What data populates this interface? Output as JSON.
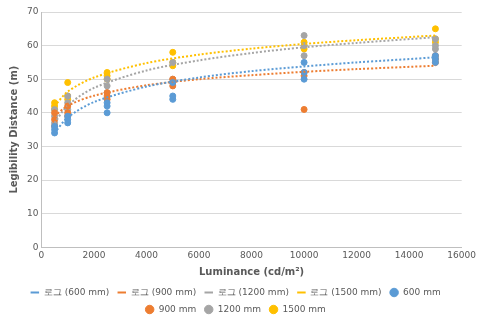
{
  "chart_data": {
    "type": "scatter",
    "x_label": "Luminance (cd/m²)",
    "y_label": "Legibility Distance (m)",
    "xlim": [
      0,
      16000
    ],
    "xticks": [
      0,
      2000,
      4000,
      6000,
      8000,
      10000,
      12000,
      14000,
      16000
    ],
    "ylim": [
      0,
      70
    ],
    "yticks": [
      0,
      10,
      20,
      30,
      40,
      50,
      60,
      70
    ],
    "grid": "y",
    "legend": "bottom",
    "series": [
      {
        "name": "600 mm",
        "color": "#5b9bd5",
        "marker": "circle",
        "x": [
          500,
          500,
          500,
          1000,
          1000,
          1000,
          2500,
          2500,
          2500,
          5000,
          5000,
          5000,
          10000,
          10000,
          10000,
          15000,
          15000,
          15000
        ],
        "values": [
          34,
          35,
          36,
          37,
          38,
          39,
          40,
          42,
          43,
          44,
          45,
          49,
          50,
          52,
          55,
          55,
          56,
          57
        ]
      },
      {
        "name": "900 mm",
        "color": "#ed7d31",
        "marker": "circle",
        "x": [
          500,
          500,
          500,
          1000,
          1000,
          1000,
          2500,
          2500,
          2500,
          5000,
          5000,
          5000,
          10000,
          10000,
          10000,
          15000,
          15000,
          15000
        ],
        "values": [
          36,
          38,
          40,
          39,
          40,
          42,
          44,
          45,
          46,
          48,
          49,
          50,
          41,
          51,
          52,
          55,
          56,
          57
        ]
      },
      {
        "name": "1200 mm",
        "color": "#a5a5a5",
        "marker": "circle",
        "x": [
          500,
          500,
          500,
          1000,
          1000,
          1000,
          2500,
          2500,
          2500,
          5000,
          5000,
          5000,
          10000,
          10000,
          10000,
          15000,
          15000,
          15000
        ],
        "values": [
          37,
          39,
          41,
          41,
          43,
          45,
          46,
          48,
          50,
          49,
          50,
          55,
          57,
          60,
          63,
          59,
          60,
          62
        ]
      },
      {
        "name": "1500 mm",
        "color": "#ffc000",
        "marker": "circle",
        "x": [
          500,
          500,
          500,
          1000,
          1000,
          1000,
          2500,
          2500,
          2500,
          5000,
          5000,
          5000,
          10000,
          10000,
          10000,
          15000,
          15000,
          15000
        ],
        "values": [
          41,
          42,
          43,
          44,
          45,
          49,
          50,
          51,
          52,
          54,
          55,
          58,
          59,
          60,
          61,
          61,
          62,
          65
        ]
      },
      {
        "name": "로그 (600 mm)",
        "color": "#5b9bd5",
        "type": "line",
        "line_style": "dotted",
        "marker": "none",
        "x": [
          500,
          1000,
          2000,
          4000,
          6000,
          8000,
          10000,
          12000,
          15000
        ],
        "values": [
          34,
          38.6,
          43.2,
          47.8,
          50.5,
          52.4,
          53.8,
          55,
          56.5
        ]
      },
      {
        "name": "로그 (900 mm)",
        "color": "#ed7d31",
        "type": "line",
        "line_style": "dotted",
        "marker": "none",
        "x": [
          500,
          1000,
          2000,
          4000,
          6000,
          8000,
          10000,
          12000,
          15000
        ],
        "values": [
          39,
          42.1,
          45.1,
          48.2,
          50,
          51.2,
          52.2,
          53,
          54
        ]
      },
      {
        "name": "로그 (1200 mm)",
        "color": "#a5a5a5",
        "type": "line",
        "line_style": "dotted",
        "marker": "none",
        "x": [
          500,
          1000,
          2000,
          4000,
          6000,
          8000,
          10000,
          12000,
          15000
        ],
        "values": [
          37,
          42.2,
          47.4,
          52.6,
          55.6,
          57.8,
          59.5,
          60.8,
          62.5
        ]
      },
      {
        "name": "로그 (1500 mm)",
        "color": "#ffc000",
        "type": "line",
        "line_style": "dotted",
        "marker": "none",
        "x": [
          500,
          1000,
          2000,
          4000,
          6000,
          8000,
          10000,
          12000,
          15000
        ],
        "values": [
          42,
          46.3,
          50.5,
          54.8,
          57.3,
          59.1,
          60.5,
          61.6,
          63
        ]
      }
    ]
  }
}
